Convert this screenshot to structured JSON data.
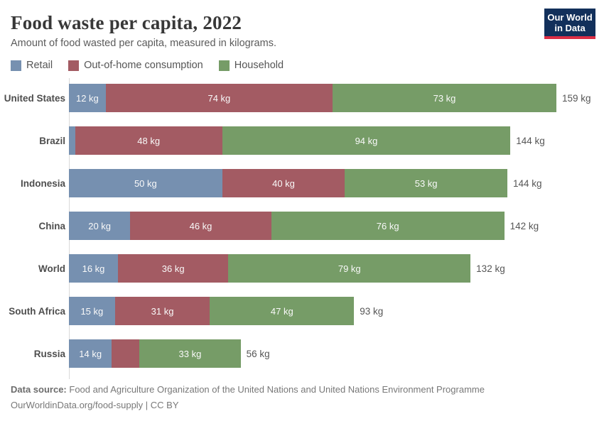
{
  "header": {
    "title": "Food waste per capita, 2022",
    "subtitle": "Amount of food wasted per capita, measured in kilograms.",
    "logo_line1": "Our World",
    "logo_line2": "in Data",
    "logo_bg_color": "#12305b",
    "logo_accent_color": "#dc2e45"
  },
  "footer": {
    "source_label": "Data source:",
    "source_text": "Food and Agriculture Organization of the United Nations and United Nations Environment Programme",
    "citation": "OurWorldinData.org/food-supply | CC BY"
  },
  "chart_data": {
    "type": "bar",
    "variant": "horizontal-stacked",
    "title": "Food waste per capita, 2022",
    "unit": "kg",
    "xmax": 159,
    "legend_position": "top",
    "grid": false,
    "series": [
      {
        "name": "Retail",
        "color": "#7690b0"
      },
      {
        "name": "Out-of-home consumption",
        "color": "#a35b63"
      },
      {
        "name": "Household",
        "color": "#769c67"
      }
    ],
    "rows": [
      {
        "entity": "United States",
        "values": [
          12,
          74,
          73
        ],
        "segment_labels": [
          "12 kg",
          "74 kg",
          "73 kg"
        ],
        "total": 159,
        "total_label": "159 kg"
      },
      {
        "entity": "Brazil",
        "values": [
          2,
          48,
          94
        ],
        "segment_labels": [
          "",
          "48 kg",
          "94 kg"
        ],
        "total": 144,
        "total_label": "144 kg"
      },
      {
        "entity": "Indonesia",
        "values": [
          50,
          40,
          53
        ],
        "segment_labels": [
          "50 kg",
          "40 kg",
          "53 kg"
        ],
        "total": 144,
        "total_label": "144 kg"
      },
      {
        "entity": "China",
        "values": [
          20,
          46,
          76
        ],
        "segment_labels": [
          "20 kg",
          "46 kg",
          "76 kg"
        ],
        "total": 142,
        "total_label": "142 kg"
      },
      {
        "entity": "World",
        "values": [
          16,
          36,
          79
        ],
        "segment_labels": [
          "16 kg",
          "36 kg",
          "79 kg"
        ],
        "total": 132,
        "total_label": "132 kg"
      },
      {
        "entity": "South Africa",
        "values": [
          15,
          31,
          47
        ],
        "segment_labels": [
          "15 kg",
          "31 kg",
          "47 kg"
        ],
        "total": 93,
        "total_label": "93 kg"
      },
      {
        "entity": "Russia",
        "values": [
          14,
          9,
          33
        ],
        "segment_labels": [
          "14 kg",
          "",
          "33 kg"
        ],
        "total": 56,
        "total_label": "56 kg"
      }
    ]
  }
}
